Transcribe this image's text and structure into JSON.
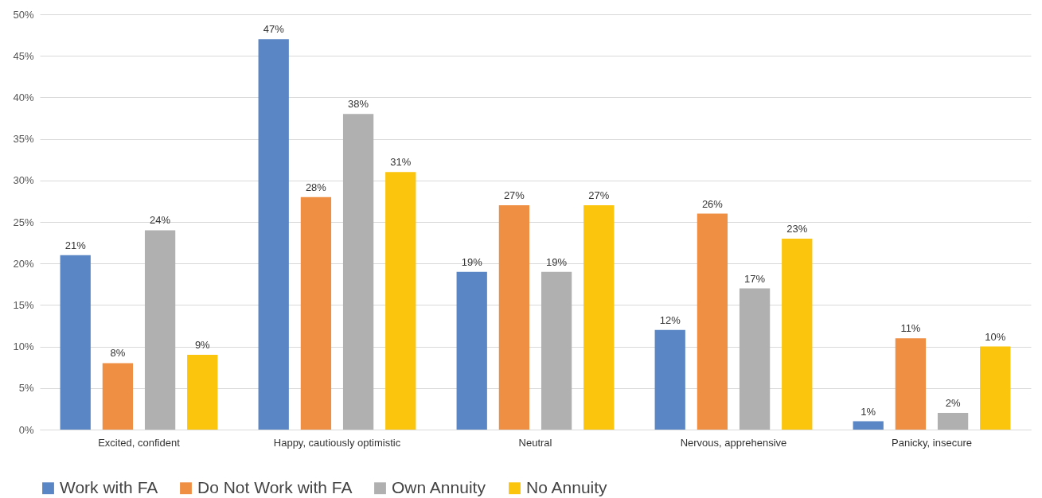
{
  "chart_data": {
    "type": "bar",
    "categories": [
      "Excited, confident",
      "Happy, cautiously optimistic",
      "Neutral",
      "Nervous, apprehensive",
      "Panicky, insecure"
    ],
    "series": [
      {
        "name": "Work with FA",
        "color": "#5a86c5",
        "values": [
          21,
          47,
          19,
          12,
          1
        ],
        "value_labels": [
          "21%",
          "47%",
          "19%",
          "12%",
          "1%"
        ]
      },
      {
        "name": "Do Not Work with FA",
        "color": "#ef8f44",
        "values": [
          8,
          28,
          27,
          26,
          11
        ],
        "value_labels": [
          "8%",
          "28%",
          "27%",
          "26%",
          "11%"
        ]
      },
      {
        "name": "Own Annuity",
        "color": "#b0b0b0",
        "values": [
          24,
          38,
          19,
          17,
          2
        ],
        "value_labels": [
          "24%",
          "38%",
          "19%",
          "17%",
          "2%"
        ]
      },
      {
        "name": "No Annuity",
        "color": "#fbc40d",
        "values": [
          9,
          31,
          27,
          23,
          10
        ],
        "value_labels": [
          "9%",
          "31%",
          "27%",
          "23%",
          "10%"
        ]
      }
    ],
    "ylim": [
      0,
      50
    ],
    "yticks": [
      {
        "value": 0,
        "label": "0%"
      },
      {
        "value": 5,
        "label": "5%"
      },
      {
        "value": 10,
        "label": "10%"
      },
      {
        "value": 15,
        "label": "15%"
      },
      {
        "value": 20,
        "label": "20%"
      },
      {
        "value": 25,
        "label": "25%"
      },
      {
        "value": 30,
        "label": "30%"
      },
      {
        "value": 35,
        "label": "35%"
      },
      {
        "value": 40,
        "label": "40%"
      },
      {
        "value": 45,
        "label": "45%"
      },
      {
        "value": 50,
        "label": "50%"
      }
    ],
    "grid": "y",
    "legend": "bottom"
  }
}
